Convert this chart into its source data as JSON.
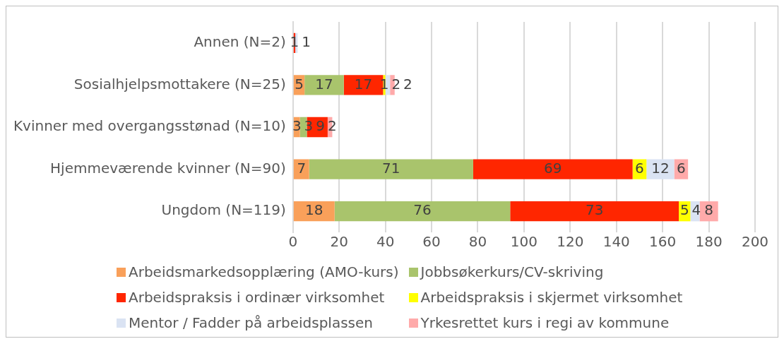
{
  "chart_data": {
    "type": "bar",
    "orientation": "horizontal",
    "stacked": true,
    "categories": [
      "Annen (N=2)",
      "Sosialhjelpsmottakere (N=25)",
      "Kvinner med overgangsstønad (N=10)",
      "Hjemmeværende kvinner (N=90)",
      "Ungdom (N=119)"
    ],
    "series": [
      {
        "name": "Arbeidsmarkedsopplæring (AMO-kurs)",
        "color": "#f9a05a",
        "values": [
          null,
          5,
          3,
          7,
          18
        ]
      },
      {
        "name": "Jobbsøkerkurs/CV-skriving",
        "color": "#a9c46c",
        "values": [
          null,
          17,
          3,
          71,
          76
        ]
      },
      {
        "name": "Arbeidspraksis i ordinær virksomhet",
        "color": "#ff2600",
        "values": [
          1,
          17,
          9,
          69,
          73
        ]
      },
      {
        "name": "Arbeidspraksis i skjermet virksomhet",
        "color": "#ffff00",
        "values": [
          null,
          1,
          null,
          6,
          5
        ]
      },
      {
        "name": "Mentor / Fadder på arbeidsplassen",
        "color": "#dae3f3",
        "values": [
          1,
          2,
          null,
          12,
          4
        ]
      },
      {
        "name": "Yrkesrettet kurs i regi av kommune",
        "color": "#ffaaaa",
        "values": [
          null,
          2,
          2,
          6,
          8
        ]
      }
    ],
    "xlim": [
      0,
      200
    ],
    "xticks": [
      0,
      20,
      40,
      60,
      80,
      100,
      120,
      140,
      160,
      180,
      200
    ],
    "grid": "x",
    "data_labels": true,
    "legend": "bottom"
  }
}
